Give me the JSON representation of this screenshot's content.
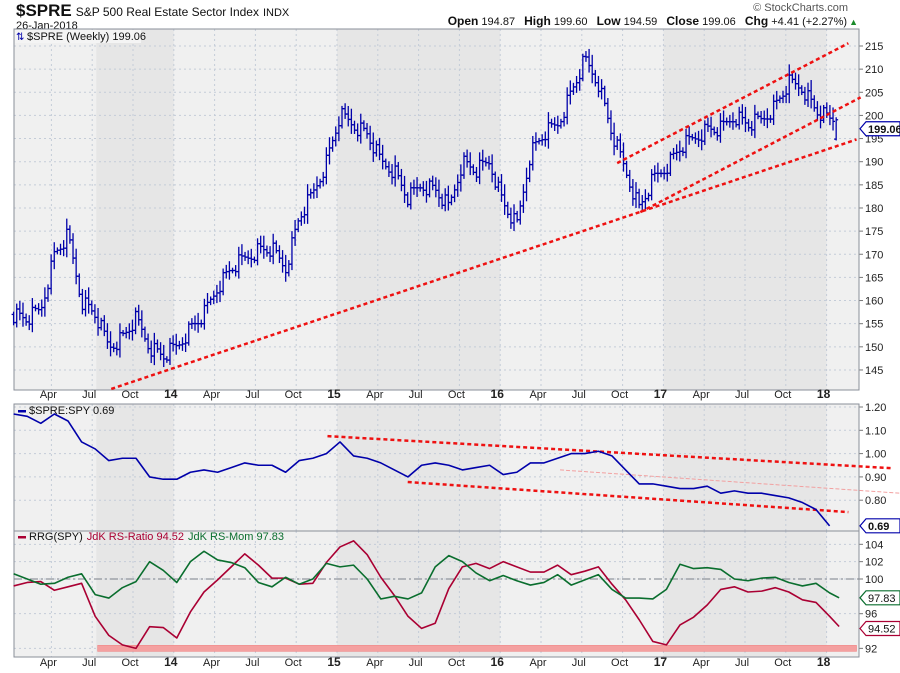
{
  "header": {
    "symbol": "$SPRE",
    "name": "S&P 500 Real Estate Sector Index",
    "exchange": "INDX",
    "date": "26-Jan-2018",
    "watermark": "© StockCharts.com",
    "ohlc": [
      {
        "label": "Open",
        "value": "194.87"
      },
      {
        "label": "High",
        "value": "199.60"
      },
      {
        "label": "Low",
        "value": "194.59"
      },
      {
        "label": "Close",
        "value": "199.06"
      },
      {
        "label": "Chg",
        "value": "+4.41 (+2.27%)"
      }
    ],
    "direction_icon": "up-triangle"
  },
  "colors": {
    "price": "#0000aa",
    "rs": "#0000aa",
    "ratio": "#aa0033",
    "momentum": "#0a6e2e",
    "trendline": "#ee1111",
    "band": "#f4a0a0",
    "panel_light": "#f0f0f0",
    "panel_dark": "#e6e6e6",
    "grid": "#c4ccd8"
  },
  "x_axis": {
    "start": "Jan 2013",
    "ticks": [
      {
        "label": "Apr",
        "month": 3
      },
      {
        "label": "Jul",
        "month": 6
      },
      {
        "label": "Oct",
        "month": 9
      },
      {
        "label": "14",
        "month": 12,
        "year": true
      },
      {
        "label": "Apr",
        "month": 15
      },
      {
        "label": "Jul",
        "month": 18
      },
      {
        "label": "Oct",
        "month": 21
      },
      {
        "label": "15",
        "month": 24,
        "year": true
      },
      {
        "label": "Apr",
        "month": 27
      },
      {
        "label": "Jul",
        "month": 30
      },
      {
        "label": "Oct",
        "month": 33
      },
      {
        "label": "16",
        "month": 36,
        "year": true
      },
      {
        "label": "Apr",
        "month": 39
      },
      {
        "label": "Jul",
        "month": 42
      },
      {
        "label": "Oct",
        "month": 45
      },
      {
        "label": "17",
        "month": 48,
        "year": true
      },
      {
        "label": "Apr",
        "month": 51
      },
      {
        "label": "Jul",
        "month": 54
      },
      {
        "label": "Oct",
        "month": 57
      },
      {
        "label": "18",
        "month": 60,
        "year": true
      }
    ],
    "shaded_years": [
      [
        6.3,
        12
      ],
      [
        24,
        36
      ],
      [
        48,
        60
      ]
    ]
  },
  "chart_data": [
    {
      "type": "ohlc",
      "title": "$SPRE (Weekly) 199.06",
      "legend": "$SPRE (Weekly) 199.06",
      "last_value": "199.06",
      "frequency": "weekly",
      "ylim": [
        140,
        218
      ],
      "yticks": [
        145,
        150,
        155,
        160,
        165,
        170,
        175,
        180,
        185,
        190,
        195,
        200,
        205,
        210,
        215
      ],
      "monthly_closes": [
        157,
        156,
        158,
        170,
        174,
        160,
        157,
        150,
        152,
        156,
        150,
        148,
        150,
        154,
        157,
        163,
        167,
        169,
        171,
        171,
        167,
        178,
        183,
        190,
        200,
        198,
        196,
        190,
        188,
        182,
        185,
        184,
        180,
        190,
        188,
        190,
        181,
        176,
        192,
        196,
        198,
        205,
        212,
        207,
        196,
        188,
        180,
        186,
        189,
        193,
        195,
        197,
        197,
        200,
        198,
        199,
        202,
        207,
        206,
        201,
        199.06
      ],
      "last_bar": {
        "open": 194.87,
        "high": 199.6,
        "low": 194.59,
        "close": 199.06
      },
      "trendlines": [
        {
          "from": {
            "month": 7.4,
            "value": 140.9
          },
          "to": {
            "month": 62.2,
            "value": 194.8
          }
        },
        {
          "from": {
            "month": 46.3,
            "value": 179.1
          },
          "to": {
            "month": 62.5,
            "value": 203.9
          }
        },
        {
          "from": {
            "month": 44.6,
            "value": 189.7
          },
          "to": {
            "month": 61.6,
            "value": 215.6
          }
        }
      ]
    },
    {
      "type": "line",
      "legend": "$SPRE:SPY 0.69",
      "last_value": "0.69",
      "ylim": [
        0.68,
        1.22
      ],
      "yticks": [
        "0.80",
        "0.90",
        "1.00",
        "1.10",
        "1.20"
      ],
      "values": [
        1.17,
        1.16,
        1.13,
        1.17,
        1.14,
        1.05,
        1.02,
        0.97,
        0.98,
        0.98,
        0.9,
        0.89,
        0.89,
        0.92,
        0.93,
        0.92,
        0.94,
        0.96,
        0.95,
        0.95,
        0.92,
        0.97,
        0.98,
        1.0,
        1.05,
        0.99,
        0.98,
        0.96,
        0.93,
        0.9,
        0.95,
        0.96,
        0.95,
        0.93,
        0.94,
        0.95,
        0.91,
        0.92,
        0.96,
        0.96,
        0.98,
        1.0,
        1.0,
        1.01,
        0.99,
        0.93,
        0.87,
        0.87,
        0.86,
        0.85,
        0.85,
        0.86,
        0.83,
        0.84,
        0.83,
        0.83,
        0.82,
        0.81,
        0.79,
        0.76,
        0.69
      ],
      "trendlines": [
        {
          "from": {
            "month": 23.3,
            "value": 1.075
          },
          "to": {
            "month": 64.9,
            "value": 0.937
          },
          "style": "thick"
        },
        {
          "from": {
            "month": 29.2,
            "value": 0.878
          },
          "to": {
            "month": 61.6,
            "value": 0.749
          },
          "style": "thick"
        },
        {
          "from": {
            "month": 40.4,
            "value": 0.93
          },
          "to": {
            "month": 65.4,
            "value": 0.83
          },
          "style": "thin"
        }
      ]
    },
    {
      "type": "line",
      "legend_title": "RRG(SPY)",
      "reference_line": 100,
      "ylim": [
        91,
        105.5
      ],
      "yticks": [
        "92",
        "96",
        "100",
        "102",
        "104"
      ],
      "highlight_band": {
        "value": 92,
        "from_month": 6.4,
        "to_month": 62.2
      },
      "series": [
        {
          "name": "JdK RS-Ratio 94.52",
          "last_value": "94.52",
          "values": [
            99.2,
            99.6,
            99.7,
            98.7,
            99.1,
            99.5,
            95.7,
            93.5,
            92.4,
            92.0,
            94.5,
            94.4,
            93.2,
            96.2,
            98.5,
            99.9,
            101.4,
            102.9,
            101.6,
            100.1,
            100.1,
            99.4,
            99.5,
            101.9,
            103.7,
            104.4,
            102.8,
            100.2,
            98.1,
            95.7,
            94.3,
            94.9,
            98.9,
            101.4,
            101.8,
            101.2,
            102.0,
            101.4,
            100.8,
            100.8,
            101.6,
            100.5,
            100.9,
            101.4,
            99.4,
            97.6,
            95.3,
            92.8,
            92.4,
            94.7,
            95.6,
            97.0,
            98.8,
            99.1,
            98.5,
            98.6,
            99.0,
            98.5,
            97.6,
            97.3,
            95.7,
            94.52
          ]
        },
        {
          "name": "JdK RS-Mom 97.83",
          "last_value": "97.83",
          "values": [
            100.6,
            100.0,
            99.4,
            99.5,
            100.2,
            100.6,
            98.2,
            97.8,
            99.0,
            99.7,
            102.0,
            101.0,
            99.6,
            102.0,
            103.2,
            102.2,
            101.9,
            101.3,
            99.6,
            99.1,
            100.2,
            99.4,
            100.0,
            101.8,
            101.4,
            101.6,
            100.0,
            97.7,
            98.0,
            97.7,
            98.4,
            101.4,
            102.7,
            102.0,
            100.7,
            99.8,
            100.4,
            99.8,
            99.3,
            99.6,
            100.5,
            99.3,
            99.9,
            100.5,
            98.8,
            97.8,
            97.8,
            97.7,
            98.8,
            101.7,
            101.2,
            101.3,
            101.1,
            100.0,
            99.8,
            100.1,
            100.2,
            99.6,
            99.2,
            99.5,
            98.4,
            97.83
          ]
        }
      ]
    }
  ]
}
